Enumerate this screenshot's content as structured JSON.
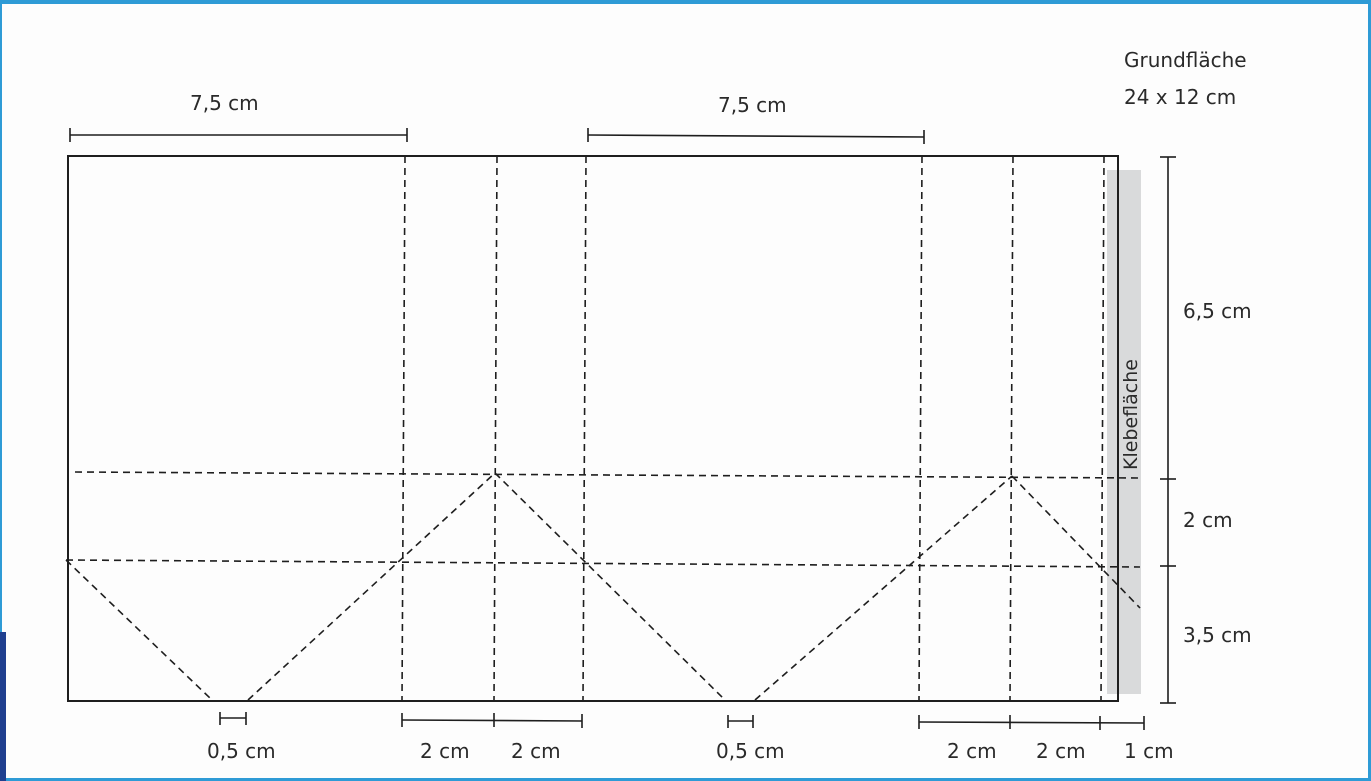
{
  "base_area": {
    "title": "Grundfläche",
    "size": "24 x 12 cm"
  },
  "glue_area": {
    "label": "Klebefläche",
    "color": "#d9dadb"
  },
  "dimensions": {
    "top_left_width": "7,5 cm",
    "top_right_width": "7,5 cm",
    "right_top_height": "6,5 cm",
    "right_middle_height": "2 cm",
    "right_bottom_height": "3,5 cm",
    "bottom_left_gap": "0,5 cm",
    "bottom_left_side_a": "2 cm",
    "bottom_left_side_b": "2 cm",
    "bottom_middle_gap": "0,5 cm",
    "bottom_right_side_a": "2 cm",
    "bottom_right_side_b": "2 cm",
    "bottom_glue_width": "1 cm"
  },
  "colors": {
    "line": "#1e1e1e",
    "frame": "#2e9bd6"
  }
}
